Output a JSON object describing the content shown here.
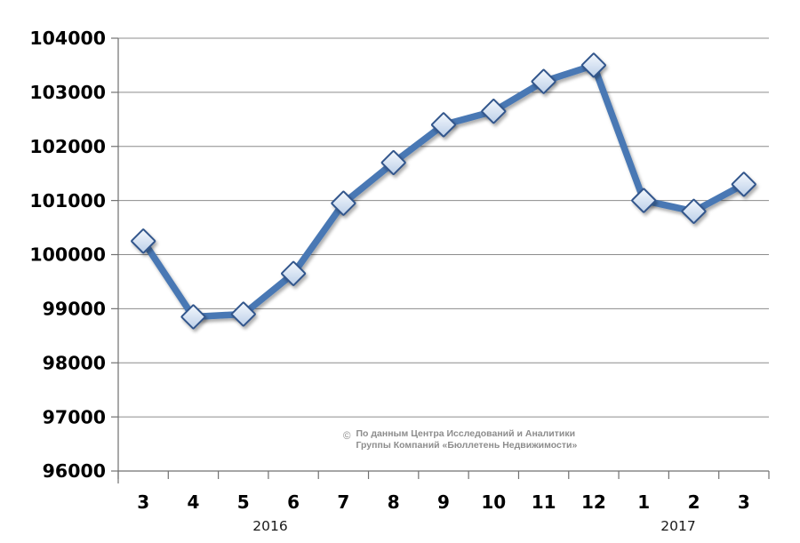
{
  "chart_data": {
    "type": "line",
    "title": "",
    "categories": [
      "3",
      "4",
      "5",
      "6",
      "7",
      "8",
      "9",
      "10",
      "11",
      "12",
      "1",
      "2",
      "3"
    ],
    "year_groups": [
      "2016",
      "2017"
    ],
    "series": [
      {
        "values": [
          100250,
          98850,
          98900,
          99650,
          100950,
          101700,
          102400,
          102650,
          103200,
          103500,
          101000,
          100800,
          101300
        ]
      }
    ],
    "ylim": [
      96000,
      104000
    ],
    "ytick_step": 1000,
    "y_tick_labels": [
      "104000",
      "103000",
      "102000",
      "101000",
      "100000",
      "99000",
      "98000",
      "97000",
      "96000"
    ],
    "grid": true,
    "legend": "none",
    "marker": "diamond",
    "colors": {
      "line": "#4878B4",
      "marker_fill_top": "#F4F8FD",
      "marker_fill_bottom": "#BCCFE8",
      "marker_stroke": "#33568C",
      "grid": "#8C8C8C",
      "axis": "#707070",
      "tick_label": "#000000",
      "attribution": "#8D8D8D",
      "background": "#FFFFFF"
    }
  },
  "annotation": {
    "copyright": "©",
    "line1": "По данным Центра Исследований и Аналитики",
    "line2": "Группы Компаний «Бюллетень Недвижимости»"
  }
}
